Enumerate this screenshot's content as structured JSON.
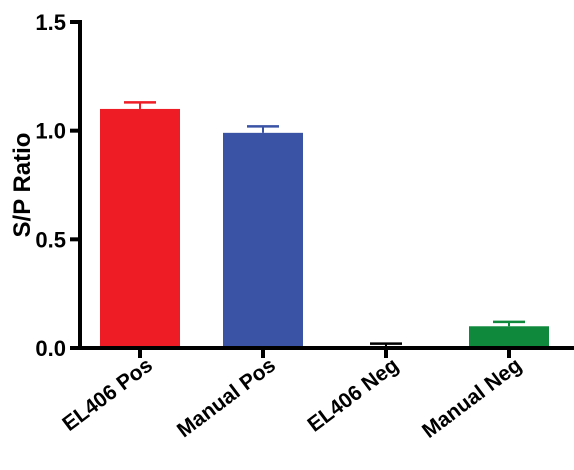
{
  "chart_data": {
    "type": "bar",
    "title": "",
    "xlabel": "",
    "ylabel": "S/P Ratio",
    "ylim": [
      0,
      1.5
    ],
    "y_ticks": [
      "0.0",
      "0.5",
      "1.0",
      "1.5"
    ],
    "y_tick_values": [
      0,
      0.5,
      1.0,
      1.5
    ],
    "grid": false,
    "categories": [
      "EL406 Pos",
      "Manual Pos",
      "EL406 Neg",
      "Manual Neg"
    ],
    "values": [
      1.1,
      0.99,
      0.005,
      0.1
    ],
    "errors": [
      0.03,
      0.03,
      0.015,
      0.02
    ],
    "colors": [
      "#ee1c25",
      "#3a53a4",
      "#000000",
      "#0f8a3c"
    ]
  }
}
